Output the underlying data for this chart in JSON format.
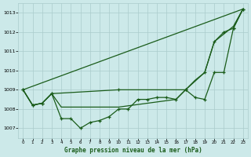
{
  "title": "Graphe pression niveau de la mer (hPa)",
  "bg": "#cce9e9",
  "grid_color": "#aacccc",
  "lc": "#1a5c1a",
  "line_straight": {
    "x": [
      0,
      23
    ],
    "y": [
      1009.0,
      1013.2
    ]
  },
  "line_upper": {
    "x": [
      0,
      1,
      2,
      3,
      10,
      17,
      19,
      20,
      21,
      22,
      23
    ],
    "y": [
      1009.0,
      1008.2,
      1008.3,
      1008.8,
      1009.0,
      1009.0,
      1009.9,
      1011.5,
      1012.0,
      1012.2,
      1013.2
    ]
  },
  "line_lower": {
    "x": [
      0,
      1,
      2,
      3,
      4,
      5,
      6,
      7,
      8,
      9,
      10,
      11,
      12,
      13,
      14,
      15,
      16,
      17,
      18,
      19,
      20,
      21,
      22,
      23
    ],
    "y": [
      1009.0,
      1008.2,
      1008.3,
      1008.8,
      1007.5,
      1007.5,
      1007.0,
      1007.3,
      1007.4,
      1007.6,
      1008.0,
      1008.0,
      1008.5,
      1008.5,
      1008.6,
      1008.6,
      1008.5,
      1009.0,
      1008.6,
      1008.5,
      1009.9,
      1009.9,
      1012.2,
      1013.2
    ]
  },
  "line_flat": {
    "x": [
      0,
      1,
      2,
      3,
      4,
      5,
      6,
      7,
      8,
      9,
      10,
      16,
      17,
      18,
      19,
      20,
      21,
      22,
      23
    ],
    "y": [
      1009.0,
      1008.2,
      1008.3,
      1008.8,
      1008.1,
      1008.1,
      1008.1,
      1008.1,
      1008.1,
      1008.1,
      1008.1,
      1008.5,
      1009.0,
      1009.5,
      1009.9,
      1011.5,
      1011.9,
      1012.3,
      1013.2
    ]
  },
  "ylim": [
    1006.5,
    1013.5
  ],
  "yticks": [
    1007,
    1008,
    1009,
    1010,
    1011,
    1012,
    1013
  ],
  "xticks": [
    0,
    1,
    2,
    3,
    4,
    5,
    6,
    7,
    8,
    9,
    10,
    11,
    12,
    13,
    14,
    15,
    16,
    17,
    18,
    19,
    20,
    21,
    22,
    23
  ]
}
